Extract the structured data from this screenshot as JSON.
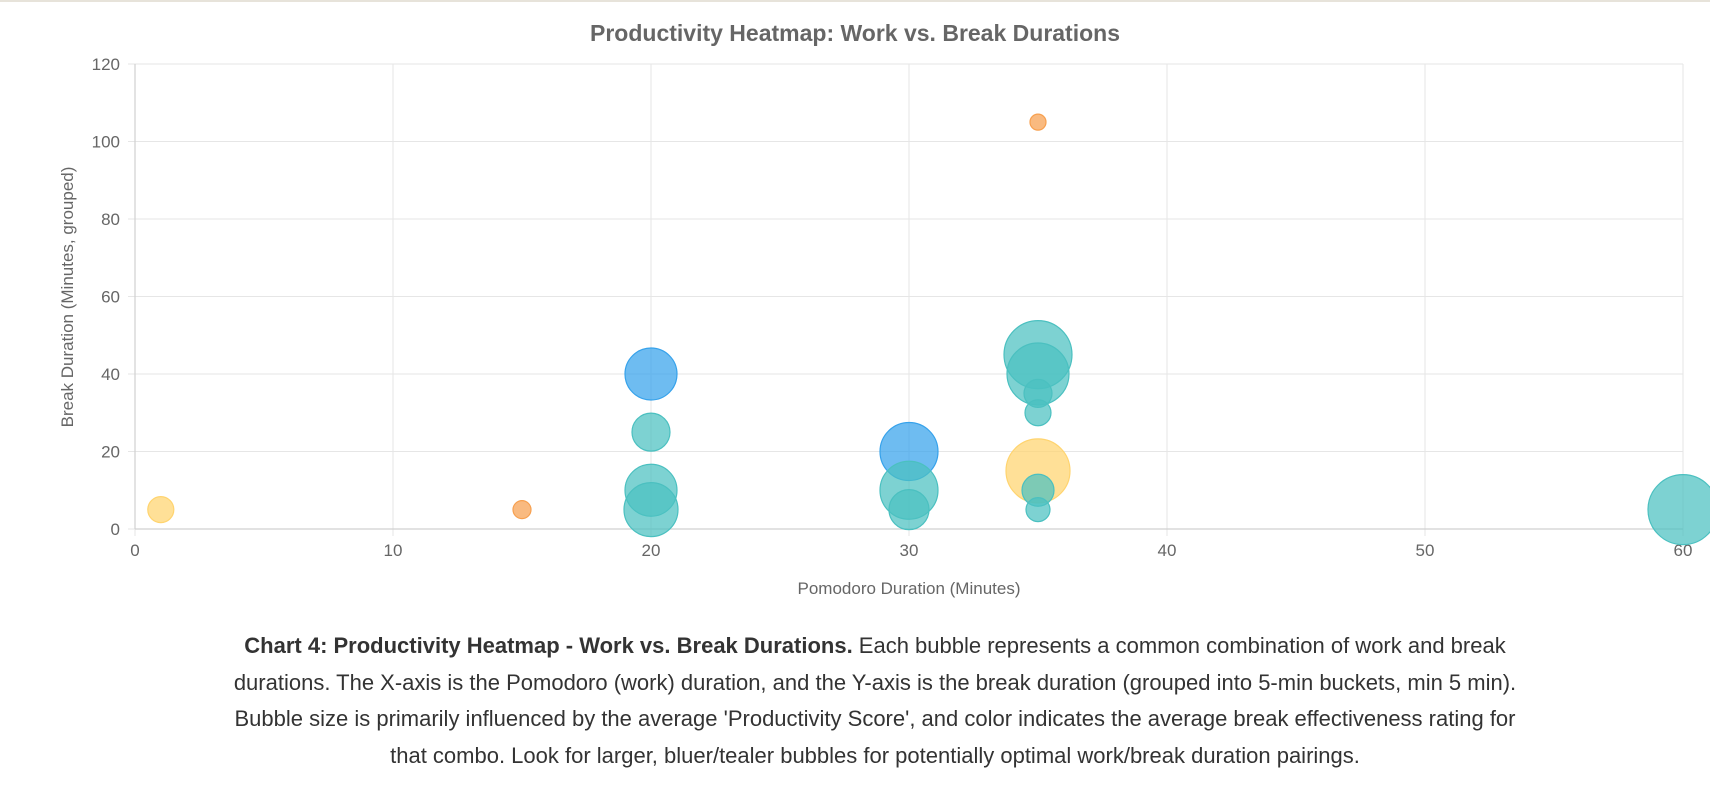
{
  "chart_data": {
    "type": "scatter",
    "variant": "bubble",
    "title": "Productivity Heatmap: Work vs. Break Durations",
    "xlabel": "Pomodoro Duration (Minutes)",
    "ylabel": "Break Duration (Minutes, grouped)",
    "xlim": [
      0,
      60
    ],
    "ylim": [
      0,
      120
    ],
    "xticks": [
      0,
      10,
      20,
      30,
      40,
      50,
      60
    ],
    "yticks": [
      0,
      20,
      40,
      60,
      80,
      100,
      120
    ],
    "grid": true,
    "colors": {
      "yellow": "#ffd46f",
      "orange": "#f7a04f",
      "teal": "#4bc0c0",
      "blue": "#36a2eb"
    },
    "points": [
      {
        "x": 1,
        "y": 5,
        "size": 13,
        "color": "yellow"
      },
      {
        "x": 15,
        "y": 5,
        "size": 9,
        "color": "orange"
      },
      {
        "x": 20,
        "y": 40,
        "size": 26,
        "color": "blue"
      },
      {
        "x": 20,
        "y": 25,
        "size": 19,
        "color": "teal"
      },
      {
        "x": 20,
        "y": 10,
        "size": 26,
        "color": "teal"
      },
      {
        "x": 20,
        "y": 5,
        "size": 27,
        "color": "teal"
      },
      {
        "x": 30,
        "y": 20,
        "size": 29,
        "color": "blue"
      },
      {
        "x": 30,
        "y": 10,
        "size": 29,
        "color": "teal"
      },
      {
        "x": 30,
        "y": 5,
        "size": 20,
        "color": "teal"
      },
      {
        "x": 35,
        "y": 105,
        "size": 8,
        "color": "orange"
      },
      {
        "x": 35,
        "y": 45,
        "size": 34,
        "color": "teal"
      },
      {
        "x": 35,
        "y": 40,
        "size": 31,
        "color": "teal"
      },
      {
        "x": 35,
        "y": 35,
        "size": 14,
        "color": "teal"
      },
      {
        "x": 35,
        "y": 30,
        "size": 13,
        "color": "teal"
      },
      {
        "x": 35,
        "y": 15,
        "size": 32,
        "color": "yellow"
      },
      {
        "x": 35,
        "y": 10,
        "size": 16,
        "color": "teal"
      },
      {
        "x": 35,
        "y": 5,
        "size": 12,
        "color": "teal"
      },
      {
        "x": 60,
        "y": 5,
        "size": 35,
        "color": "teal"
      }
    ]
  },
  "caption": {
    "bold": "Chart 4: Productivity Heatmap - Work vs. Break Durations.",
    "text": " Each bubble represents a common combination of work and break durations. The X-axis is the Pomodoro (work) duration, and the Y-axis is the break duration (grouped into 5-min buckets, min 5 min). Bubble size is primarily influenced by the average 'Productivity Score', and color indicates the average break effectiveness rating for that combo. Look for larger, bluer/tealer bubbles for potentially optimal work/break duration pairings."
  }
}
